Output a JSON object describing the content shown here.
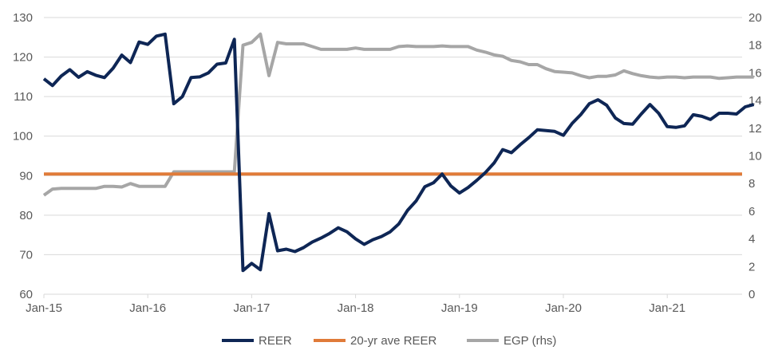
{
  "colors": {
    "reer": "#0e2655",
    "avg": "#e07b39",
    "egp": "#a6a6a6",
    "grid": "#d9d9d9",
    "text": "#595959"
  },
  "chart_data": {
    "type": "line",
    "xlabel": "",
    "ylabel": "",
    "x_tick_labels": [
      "Jan-15",
      "Jan-16",
      "Jan-17",
      "Jan-18",
      "Jan-19",
      "Jan-20",
      "Jan-21"
    ],
    "left_axis": {
      "ylim": [
        60,
        130
      ],
      "ticks": [
        60,
        70,
        80,
        90,
        100,
        110,
        120,
        130
      ]
    },
    "right_axis": {
      "ylim": [
        0,
        20
      ],
      "ticks": [
        0,
        2,
        4,
        6,
        8,
        10,
        12,
        14,
        16,
        18,
        20
      ]
    },
    "grid": true,
    "legend_position": "bottom",
    "series": [
      {
        "name": "REER",
        "axis": "left",
        "start": "Jan-15",
        "values": [
          114.5,
          112.8,
          115.2,
          116.8,
          114.9,
          116.3,
          115.4,
          114.8,
          117.2,
          120.5,
          118.6,
          123.8,
          123.2,
          125.3,
          125.8,
          108.2,
          110.0,
          114.8,
          115.0,
          116.0,
          118.2,
          118.5,
          124.5,
          66.0,
          67.8,
          66.2,
          80.4,
          71.0,
          71.4,
          70.8,
          71.8,
          73.2,
          74.2,
          75.4,
          76.8,
          75.8,
          74.0,
          72.6,
          73.8,
          74.6,
          75.8,
          77.8,
          81.2,
          83.6,
          87.2,
          88.2,
          90.4,
          87.4,
          85.6,
          87.0,
          88.8,
          90.8,
          93.2,
          96.6,
          95.8,
          97.8,
          99.6,
          101.6,
          101.4,
          101.2,
          100.2,
          103.2,
          105.4,
          108.2,
          109.2,
          107.8,
          104.6,
          103.2,
          103.0,
          105.6,
          108.0,
          105.8,
          102.4,
          102.2,
          102.6,
          105.4,
          105.0,
          104.2,
          105.8,
          105.8,
          105.6,
          107.4,
          108.0
        ]
      },
      {
        "name": "20-yr ave REER",
        "axis": "left",
        "values": [
          90.4,
          90.4
        ]
      },
      {
        "name": "EGP (rhs)",
        "axis": "right",
        "start": "Jan-15",
        "values": [
          7.15,
          7.6,
          7.65,
          7.65,
          7.65,
          7.65,
          7.65,
          7.8,
          7.8,
          7.75,
          8.0,
          7.8,
          7.8,
          7.8,
          7.8,
          8.85,
          8.85,
          8.85,
          8.85,
          8.85,
          8.85,
          8.85,
          8.85,
          18.0,
          18.2,
          18.8,
          15.8,
          18.2,
          18.1,
          18.1,
          18.1,
          17.9,
          17.7,
          17.7,
          17.7,
          17.7,
          17.8,
          17.7,
          17.7,
          17.7,
          17.7,
          17.9,
          17.95,
          17.9,
          17.9,
          17.9,
          17.95,
          17.9,
          17.9,
          17.9,
          17.65,
          17.5,
          17.3,
          17.2,
          16.9,
          16.8,
          16.6,
          16.6,
          16.3,
          16.1,
          16.05,
          16.0,
          15.8,
          15.65,
          15.75,
          15.75,
          15.85,
          16.15,
          15.95,
          15.8,
          15.7,
          15.65,
          15.7,
          15.7,
          15.65,
          15.7,
          15.7,
          15.7,
          15.6,
          15.65,
          15.7,
          15.7,
          15.7
        ]
      }
    ]
  }
}
